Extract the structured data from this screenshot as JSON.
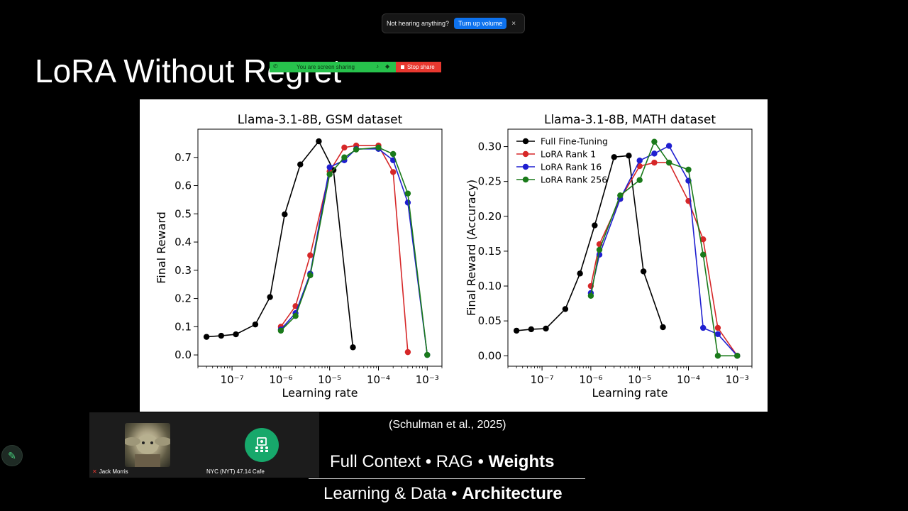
{
  "slide": {
    "title": "LoRA Without Regret",
    "citation": "(Schulman et al., 2025)",
    "line1": {
      "normal": "Full Context • RAG • ",
      "bold": "Weights"
    },
    "line2": {
      "normal": "Learning & Data • ",
      "bold": "Architecture"
    }
  },
  "audio_notice": {
    "text": "Not hearing anything?",
    "button": "Turn up volume",
    "close": "×"
  },
  "share_bar": {
    "status": "You are screen sharing",
    "stop_label": "Stop share"
  },
  "participants": [
    {
      "name": "Jack Morris",
      "muted": true
    },
    {
      "name": "NYC (NYT) 47.14 Cafe"
    }
  ],
  "chart_data": [
    {
      "type": "line",
      "title": "Llama-3.1-8B, GSM dataset",
      "xlabel": "Learning rate",
      "ylabel": "Final Reward",
      "xscale": "log",
      "xlim": [
        2e-08,
        0.002
      ],
      "ylim": [
        -0.04,
        0.8
      ],
      "xticks": [
        "10⁻⁷",
        "10⁻⁶",
        "10⁻⁵",
        "10⁻⁴",
        "10⁻³"
      ],
      "yticks": [
        "0.0",
        "0.1",
        "0.2",
        "0.3",
        "0.4",
        "0.5",
        "0.6",
        "0.7"
      ],
      "series": [
        {
          "name": "Full Fine-Tuning",
          "color": "#000000",
          "x": [
            3e-08,
            6e-08,
            1.2e-07,
            3e-07,
            6e-07,
            1.2e-06,
            2.5e-06,
            6e-06,
            1.2e-05,
            3e-05
          ],
          "y": [
            0.064,
            0.068,
            0.073,
            0.108,
            0.205,
            0.498,
            0.675,
            0.757,
            0.655,
            0.027
          ]
        },
        {
          "name": "LoRA Rank 1",
          "color": "#d62728",
          "x": [
            1e-06,
            2e-06,
            4e-06,
            1e-05,
            2e-05,
            3.5e-05,
            0.0001,
            0.0002,
            0.0004
          ],
          "y": [
            0.1,
            0.173,
            0.353,
            0.65,
            0.735,
            0.742,
            0.742,
            0.648,
            0.01
          ]
        },
        {
          "name": "LoRA Rank 16",
          "color": "#1f1fd0",
          "x": [
            1e-06,
            2e-06,
            4e-06,
            1e-05,
            2e-05,
            3.5e-05,
            0.0001,
            0.0002,
            0.0004,
            0.001
          ],
          "y": [
            0.09,
            0.148,
            0.288,
            0.665,
            0.69,
            0.73,
            0.73,
            0.69,
            0.54,
            0.0
          ]
        },
        {
          "name": "LoRA Rank 256",
          "color": "#1a7a1a",
          "x": [
            1e-06,
            2e-06,
            4e-06,
            1e-05,
            2e-05,
            3.5e-05,
            0.0001,
            0.0002,
            0.0004,
            0.001
          ],
          "y": [
            0.086,
            0.138,
            0.282,
            0.64,
            0.7,
            0.728,
            0.735,
            0.712,
            0.572,
            0.0
          ]
        }
      ]
    },
    {
      "type": "line",
      "title": "Llama-3.1-8B, MATH dataset",
      "xlabel": "Learning rate",
      "ylabel": "Final Reward (Accuracy)",
      "xscale": "log",
      "xlim": [
        2e-08,
        0.002
      ],
      "ylim": [
        -0.015,
        0.325
      ],
      "xticks": [
        "10⁻⁷",
        "10⁻⁶",
        "10⁻⁵",
        "10⁻⁴",
        "10⁻³"
      ],
      "yticks": [
        "0.00",
        "0.05",
        "0.10",
        "0.15",
        "0.20",
        "0.25",
        "0.30"
      ],
      "legend": "top-left",
      "series": [
        {
          "name": "Full Fine-Tuning",
          "color": "#000000",
          "x": [
            3e-08,
            6e-08,
            1.2e-07,
            3e-07,
            6e-07,
            1.2e-06,
            3e-06,
            6e-06,
            1.2e-05,
            3e-05
          ],
          "y": [
            0.036,
            0.038,
            0.039,
            0.067,
            0.118,
            0.187,
            0.285,
            0.287,
            0.121,
            0.041
          ]
        },
        {
          "name": "LoRA Rank 1",
          "color": "#d62728",
          "x": [
            1e-06,
            1.5e-06,
            4e-06,
            1e-05,
            2e-05,
            4e-05,
            0.0001,
            0.0002,
            0.0004,
            0.001
          ],
          "y": [
            0.1,
            0.16,
            0.225,
            0.272,
            0.277,
            0.277,
            0.222,
            0.167,
            0.04,
            0.0
          ]
        },
        {
          "name": "LoRA Rank 16",
          "color": "#1f1fd0",
          "x": [
            1e-06,
            1.5e-06,
            4e-06,
            1e-05,
            2e-05,
            4e-05,
            0.0001,
            0.0002,
            0.0004,
            0.001
          ],
          "y": [
            0.09,
            0.145,
            0.225,
            0.28,
            0.29,
            0.301,
            0.251,
            0.04,
            0.031,
            0.0
          ]
        },
        {
          "name": "LoRA Rank 256",
          "color": "#1a7a1a",
          "x": [
            1e-06,
            1.5e-06,
            4e-06,
            1e-05,
            2e-05,
            4e-05,
            0.0001,
            0.0002,
            0.0004,
            0.001
          ],
          "y": [
            0.086,
            0.152,
            0.23,
            0.252,
            0.307,
            0.277,
            0.267,
            0.145,
            0.0,
            0.0
          ]
        }
      ]
    }
  ]
}
